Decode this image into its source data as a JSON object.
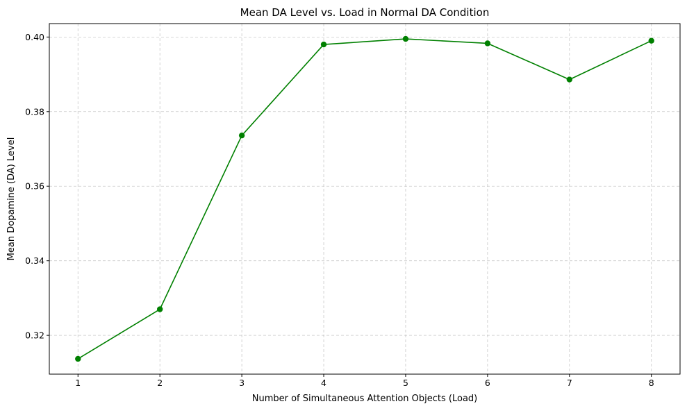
{
  "chart_data": {
    "type": "line",
    "title": "Mean DA Level vs. Load in Normal DA Condition",
    "xlabel": "Number of Simultaneous Attention Objects (Load)",
    "ylabel": "Mean Dopamine (DA) Level",
    "x": [
      1,
      2,
      3,
      4,
      5,
      6,
      7,
      8
    ],
    "x_tick_labels": [
      "1",
      "2",
      "3",
      "4",
      "5",
      "6",
      "7",
      "8"
    ],
    "y_ticks": [
      0.32,
      0.34,
      0.36,
      0.38,
      0.4
    ],
    "y_tick_labels": [
      "0.32",
      "0.34",
      "0.36",
      "0.38",
      "0.40"
    ],
    "series": [
      {
        "values": [
          0.3137,
          0.327,
          0.3736,
          0.398,
          0.3995,
          0.3983,
          0.3886,
          0.399
        ],
        "color": "#008000",
        "marker": "circle"
      }
    ],
    "xlim": [
      0.65,
      8.35
    ],
    "ylim": [
      0.3096,
      0.4036
    ],
    "grid": true,
    "grid_style": "dashed",
    "legend": "none"
  }
}
